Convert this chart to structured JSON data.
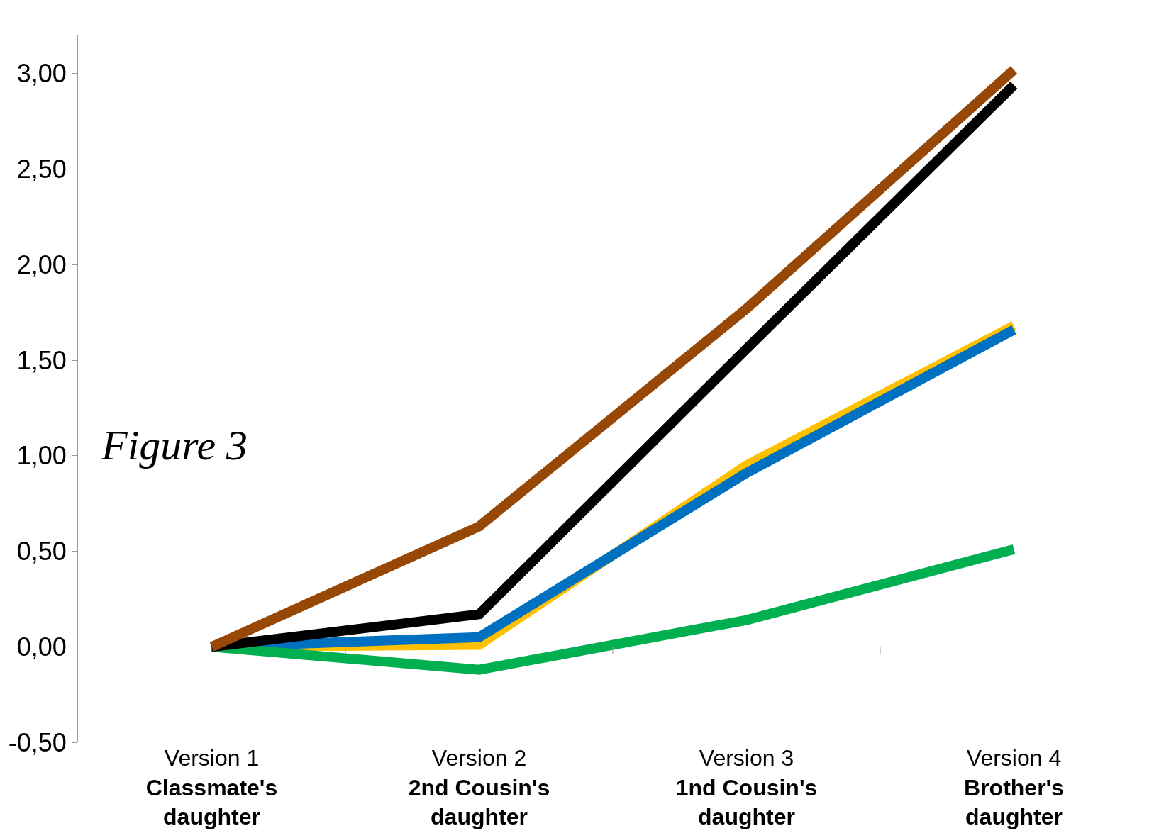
{
  "chart_data": {
    "type": "line",
    "categories": [
      "Version 1\nClassmate's\ndaughter",
      "Version 2\n2nd Cousin's\ndaughter",
      "Version 3\n1nd Cousin's\ndaughter",
      "Version 4\nBrother's\ndaughter"
    ],
    "series": [
      {
        "color": "#ffc000",
        "values": [
          0,
          0.01,
          0.95,
          1.68
        ]
      },
      {
        "color": "#0070c0",
        "values": [
          0,
          0.05,
          0.91,
          1.66
        ]
      },
      {
        "color": "#00b050",
        "values": [
          0,
          -0.12,
          0.14,
          0.51
        ]
      },
      {
        "color": "#000000",
        "values": [
          0,
          0.17,
          1.56,
          2.94
        ]
      },
      {
        "color": "#974706",
        "values": [
          0,
          0.63,
          1.77,
          3.02
        ]
      }
    ],
    "ylim": [
      -0.5,
      3.2
    ],
    "yticks": [
      {
        "value": -0.5,
        "label": "-0,50"
      },
      {
        "value": 0,
        "label": "0,00"
      },
      {
        "value": 0.5,
        "label": "0,50"
      },
      {
        "value": 1,
        "label": "1,00"
      },
      {
        "value": 1.5,
        "label": "1,50"
      },
      {
        "value": 2,
        "label": "2,00"
      },
      {
        "value": 2.5,
        "label": "2,50"
      },
      {
        "value": 3,
        "label": "3,00"
      }
    ],
    "annotations": [
      "Figure 3"
    ],
    "marker": "none",
    "line_style": "solid"
  }
}
